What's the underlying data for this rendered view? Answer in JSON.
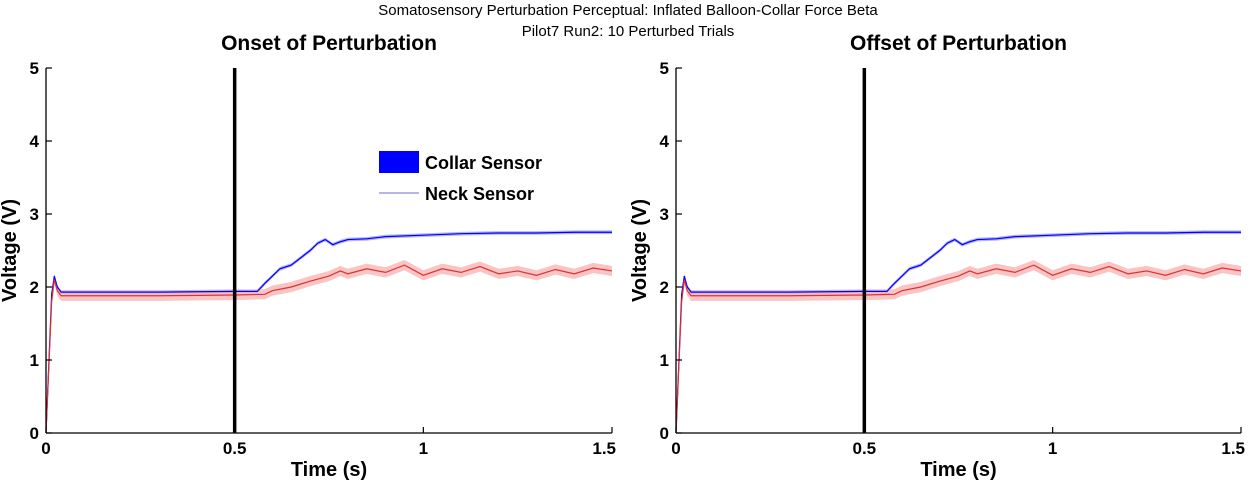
{
  "figure": {
    "suptitle_line1": "Somatosensory Perturbation Perceptual: Inflated Balloon-Collar Force Beta",
    "suptitle_line2": "Pilot7 Run2: 10 Perturbed Trials"
  },
  "colors": {
    "collar": "#0000ff",
    "collar_band": "#9a9aff",
    "neck": "#e03030",
    "neck_band": "#f6b0b0",
    "marker": "#000000"
  },
  "chart_data": [
    {
      "type": "line",
      "title": "Onset of Perturbation",
      "xlabel": "Time (s)",
      "ylabel": "Voltage (V)",
      "xlim": [
        0,
        1.5
      ],
      "ylim": [
        0,
        5
      ],
      "xticks": [
        "0",
        "0.5",
        "1",
        "1.5"
      ],
      "yticks": [
        "0",
        "1",
        "2",
        "3",
        "4",
        "5"
      ],
      "grid": false,
      "legend": {
        "placement": "top-center",
        "entries": [
          "Collar Sensor",
          "Neck Sensor"
        ]
      },
      "vline_x": 0.5,
      "series": [
        {
          "name": "Collar Sensor",
          "x": [
            0,
            0.015,
            0.022,
            0.03,
            0.04,
            0.05,
            0.1,
            0.3,
            0.5,
            0.56,
            0.58,
            0.6,
            0.62,
            0.65,
            0.68,
            0.7,
            0.72,
            0.74,
            0.76,
            0.78,
            0.8,
            0.85,
            0.9,
            1.0,
            1.1,
            1.2,
            1.3,
            1.4,
            1.5
          ],
          "y": [
            0,
            1.9,
            2.15,
            2.0,
            1.93,
            1.93,
            1.93,
            1.93,
            1.94,
            1.94,
            2.05,
            2.15,
            2.25,
            2.3,
            2.42,
            2.5,
            2.6,
            2.65,
            2.58,
            2.62,
            2.65,
            2.66,
            2.69,
            2.71,
            2.73,
            2.74,
            2.74,
            2.75,
            2.75
          ],
          "band": 0.025
        },
        {
          "name": "Neck Sensor",
          "x": [
            0,
            0.015,
            0.022,
            0.03,
            0.04,
            0.05,
            0.1,
            0.3,
            0.5,
            0.58,
            0.6,
            0.65,
            0.7,
            0.75,
            0.78,
            0.8,
            0.85,
            0.9,
            0.95,
            1.0,
            1.05,
            1.1,
            1.15,
            1.2,
            1.25,
            1.3,
            1.35,
            1.4,
            1.45,
            1.5
          ],
          "y": [
            0,
            1.8,
            2.1,
            1.95,
            1.88,
            1.88,
            1.88,
            1.88,
            1.89,
            1.9,
            1.95,
            2.0,
            2.08,
            2.15,
            2.22,
            2.18,
            2.25,
            2.2,
            2.3,
            2.16,
            2.25,
            2.2,
            2.28,
            2.18,
            2.22,
            2.16,
            2.24,
            2.18,
            2.26,
            2.22
          ],
          "band": 0.07
        }
      ]
    },
    {
      "type": "line",
      "title": "Offset of Perturbation",
      "xlabel": "Time (s)",
      "ylabel": "Voltage (V)",
      "xlim": [
        0,
        1.5
      ],
      "ylim": [
        0,
        5
      ],
      "xticks": [
        "0",
        "0.5",
        "1",
        "1.5"
      ],
      "yticks": [
        "0",
        "1",
        "2",
        "3",
        "4",
        "5"
      ],
      "grid": false,
      "vline_x": 0.5,
      "series": [
        {
          "name": "Collar Sensor",
          "x": [
            0,
            0.015,
            0.022,
            0.03,
            0.04,
            0.05,
            0.1,
            0.3,
            0.5,
            0.56,
            0.58,
            0.6,
            0.62,
            0.65,
            0.68,
            0.7,
            0.72,
            0.74,
            0.76,
            0.78,
            0.8,
            0.85,
            0.9,
            1.0,
            1.1,
            1.2,
            1.3,
            1.4,
            1.5
          ],
          "y": [
            0,
            1.9,
            2.15,
            2.0,
            1.93,
            1.93,
            1.93,
            1.93,
            1.94,
            1.94,
            2.05,
            2.15,
            2.25,
            2.3,
            2.42,
            2.5,
            2.6,
            2.65,
            2.58,
            2.62,
            2.65,
            2.66,
            2.69,
            2.71,
            2.73,
            2.74,
            2.74,
            2.75,
            2.75
          ],
          "band": 0.025
        },
        {
          "name": "Neck Sensor",
          "x": [
            0,
            0.015,
            0.022,
            0.03,
            0.04,
            0.05,
            0.1,
            0.3,
            0.5,
            0.58,
            0.6,
            0.65,
            0.7,
            0.75,
            0.78,
            0.8,
            0.85,
            0.9,
            0.95,
            1.0,
            1.05,
            1.1,
            1.15,
            1.2,
            1.25,
            1.3,
            1.35,
            1.4,
            1.45,
            1.5
          ],
          "y": [
            0,
            1.8,
            2.1,
            1.95,
            1.88,
            1.88,
            1.88,
            1.88,
            1.89,
            1.9,
            1.95,
            2.0,
            2.08,
            2.15,
            2.22,
            2.18,
            2.25,
            2.2,
            2.3,
            2.16,
            2.25,
            2.2,
            2.28,
            2.18,
            2.22,
            2.16,
            2.24,
            2.18,
            2.26,
            2.22
          ],
          "band": 0.07
        }
      ]
    }
  ]
}
